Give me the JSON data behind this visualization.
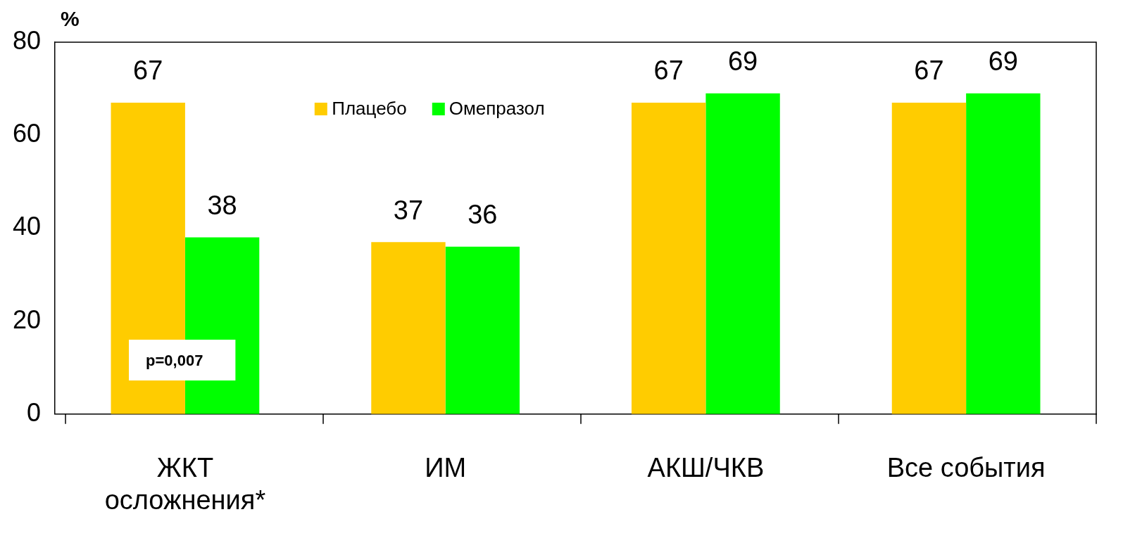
{
  "chart_data": {
    "type": "bar",
    "ylabel": "%",
    "categories": [
      "ЖКТ осложнения*",
      "ИМ",
      "АКШ/ЧКВ",
      "Все события"
    ],
    "series": [
      {
        "name": "Плацебо",
        "color": "#ffcc00",
        "values": [
          67,
          37,
          67,
          67
        ]
      },
      {
        "name": "Омепразол",
        "color": "#00ff00",
        "values": [
          38,
          36,
          69,
          69
        ]
      }
    ],
    "ylim": [
      0,
      80
    ],
    "yticks": [
      0,
      20,
      40,
      60,
      80
    ],
    "grid": false,
    "legend": "top",
    "data_labels": true,
    "annotations": [
      "p=0,007"
    ]
  }
}
